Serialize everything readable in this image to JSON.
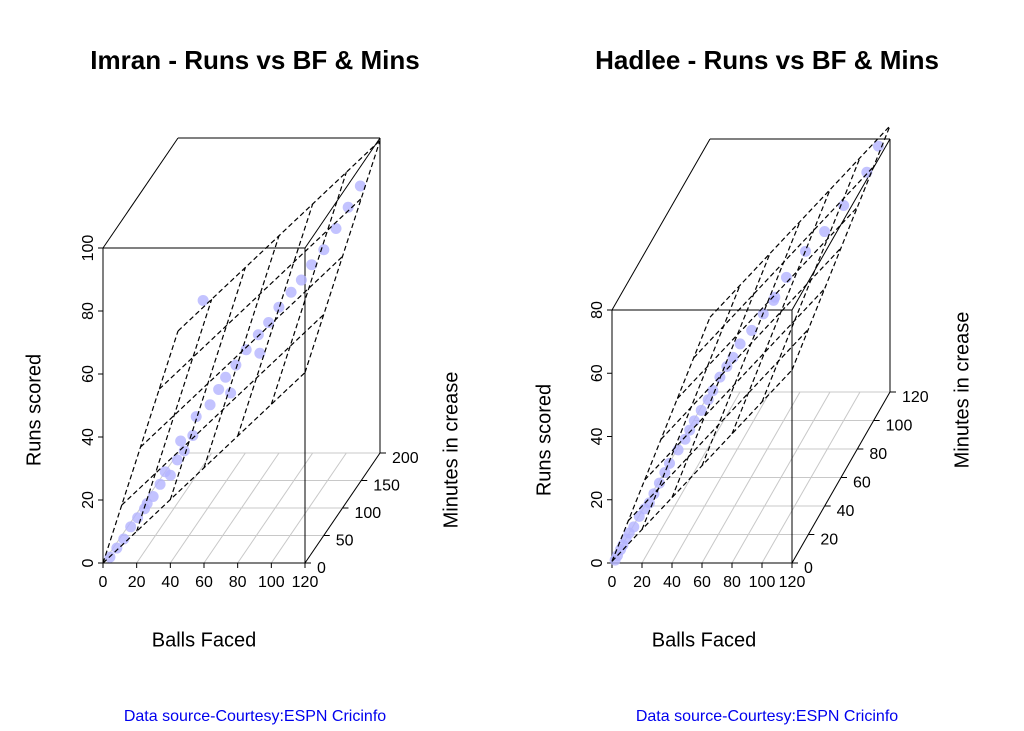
{
  "chart_data": [
    {
      "type": "scatter3d",
      "title": "Imran - Runs  vs BF & Mins",
      "x_label": "Balls Faced",
      "y_label": "Minutes in crease",
      "z_label": "Runs scored",
      "caption": "Data source-Courtesy:ESPN Cricinfo",
      "color": "#b4b4ff",
      "xlim": [
        0,
        120
      ],
      "xticks": [
        0,
        20,
        40,
        60,
        80,
        100,
        120
      ],
      "ylim": [
        0,
        200
      ],
      "yticks": [
        0,
        50,
        100,
        150,
        200
      ],
      "zlim": [
        0,
        100
      ],
      "zticks": [
        0,
        20,
        40,
        60,
        80,
        100
      ],
      "x": [
        3,
        6,
        9,
        12,
        15,
        18,
        22,
        25,
        30,
        33,
        36,
        40,
        42,
        48,
        52,
        55,
        60,
        65,
        70,
        75,
        80,
        85,
        90,
        95,
        100,
        105,
        110,
        115,
        20,
        28,
        45,
        35,
        58,
        72
      ],
      "y": [
        5,
        10,
        15,
        20,
        25,
        30,
        35,
        40,
        45,
        50,
        55,
        60,
        60,
        70,
        75,
        80,
        85,
        90,
        100,
        105,
        110,
        120,
        125,
        130,
        140,
        150,
        160,
        170,
        28,
        40,
        65,
        50,
        80,
        95
      ],
      "z": [
        1,
        3,
        5,
        8,
        10,
        12,
        15,
        18,
        20,
        24,
        26,
        30,
        36,
        38,
        42,
        45,
        48,
        52,
        55,
        58,
        62,
        65,
        68,
        72,
        75,
        80,
        85,
        90,
        14,
        22,
        72,
        30,
        40,
        50
      ]
    },
    {
      "type": "scatter3d",
      "title": "Hadlee - Runs  vs BF & Mins",
      "x_label": "Balls Faced",
      "y_label": "Minutes in crease",
      "z_label": "Runs scored",
      "caption": "Data source-Courtesy:ESPN Cricinfo",
      "color": "#b4b4ff",
      "xlim": [
        0,
        120
      ],
      "xticks": [
        0,
        20,
        40,
        60,
        80,
        100,
        120
      ],
      "ylim": [
        0,
        120
      ],
      "yticks": [
        0,
        20,
        40,
        60,
        80,
        100,
        120
      ],
      "zlim": [
        0,
        80
      ],
      "zticks": [
        0,
        20,
        40,
        60,
        80
      ],
      "x": [
        1,
        2,
        3,
        4,
        5,
        6,
        8,
        10,
        12,
        14,
        16,
        18,
        20,
        22,
        25,
        28,
        30,
        32,
        35,
        38,
        40,
        42,
        45,
        48,
        50,
        55,
        60,
        65,
        70,
        80,
        90,
        100,
        110,
        115,
        75
      ],
      "y": [
        2,
        3,
        5,
        6,
        8,
        10,
        12,
        15,
        18,
        20,
        22,
        25,
        28,
        30,
        35,
        38,
        40,
        42,
        45,
        48,
        50,
        55,
        58,
        60,
        65,
        70,
        75,
        80,
        85,
        90,
        95,
        100,
        110,
        115,
        60
      ],
      "z": [
        0,
        1,
        2,
        3,
        4,
        5,
        6,
        8,
        9,
        10,
        12,
        14,
        16,
        18,
        20,
        22,
        24,
        26,
        28,
        30,
        32,
        34,
        36,
        38,
        40,
        42,
        45,
        48,
        52,
        58,
        62,
        68,
        74,
        80,
        56
      ]
    }
  ]
}
